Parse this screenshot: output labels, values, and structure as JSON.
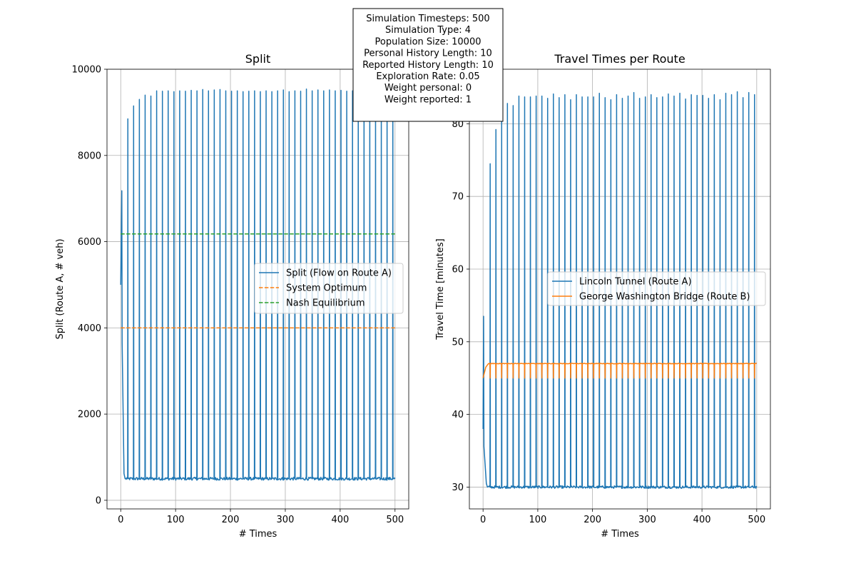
{
  "chart_data": [
    {
      "type": "line",
      "title": "Split",
      "xlabel": "# Times",
      "ylabel": "Split (Route A, # veh)",
      "xlim": [
        -25,
        525
      ],
      "ylim": [
        -200,
        10000
      ],
      "xticks": [
        "0",
        "100",
        "200",
        "300",
        "400",
        "500"
      ],
      "yticks": [
        "0",
        "2000",
        "4000",
        "6000",
        "8000",
        "10000"
      ],
      "grid": true,
      "legend_position": "center-right",
      "x_range": [
        0,
        500
      ],
      "series": [
        {
          "name": "Split (Flow on Route A)",
          "color": "#1f77b4",
          "style": "solid",
          "pattern": "oscillating",
          "start_value": 5000,
          "first_peak": 7180,
          "first_peak_x": 2,
          "low_value": 500,
          "high_value": 9500,
          "peak_period": 10.5,
          "peak_values": [
            8850,
            9150,
            9300,
            9400,
            9380,
            9500,
            9490,
            9500,
            9480,
            9500,
            9490,
            9510,
            9500,
            9530,
            9500,
            9520,
            9530,
            9500,
            9490,
            9500,
            9480,
            9490,
            9500,
            9480,
            9500,
            9480,
            9500,
            9520,
            9480,
            9500,
            9490,
            9540,
            9500,
            9520,
            9500,
            9520,
            9500,
            9510,
            9490,
            9500,
            9480,
            9500,
            9490,
            9480,
            9500,
            9480,
            9500
          ]
        },
        {
          "name": "System Optimum",
          "color": "#ff7f0e",
          "style": "dashed",
          "value": 4000
        },
        {
          "name": "Nash Equilibrium",
          "color": "#2ca02c",
          "style": "dashed",
          "value": 6180
        }
      ]
    },
    {
      "type": "line",
      "title": "Travel Times per Route",
      "xlabel": "# Times",
      "ylabel": "Travel Time [minutes]",
      "xlim": [
        -25,
        525
      ],
      "ylim": [
        27,
        87.5
      ],
      "xticks": [
        "0",
        "100",
        "200",
        "300",
        "400",
        "500"
      ],
      "yticks": [
        "30",
        "40",
        "50",
        "60",
        "70",
        "80"
      ],
      "grid": true,
      "legend_position": "center-right",
      "x_range": [
        0,
        500
      ],
      "series": [
        {
          "name": "Lincoln Tunnel (Route A)",
          "color": "#1f77b4",
          "style": "solid",
          "pattern": "oscillating",
          "start_value": 38,
          "first_peak": 53.5,
          "first_peak_x": 1,
          "low_value": 30,
          "high_value": 84,
          "peak_period": 10.5,
          "peak_values": [
            74.5,
            79.2,
            80.5,
            82.8,
            82.5,
            83.8,
            83.7,
            83.7,
            83.8,
            83.8,
            83.5,
            84.1,
            83.6,
            84.0,
            83.3,
            84.0,
            83.7,
            83.7,
            83.7,
            84.2,
            83.6,
            83.3,
            84.0,
            83.5,
            83.8,
            84.3,
            83.5,
            83.7,
            84.0,
            83.6,
            83.7,
            84.1,
            83.8,
            84.2,
            83.4,
            84.0,
            83.9,
            83.9,
            83.5,
            84.0,
            83.3,
            84.2,
            84.0,
            84.4,
            83.6,
            84.3,
            84.0,
            84.1
          ]
        },
        {
          "name": "George Washington Bridge (Route B)",
          "color": "#ff7f0e",
          "style": "solid",
          "pattern": "oscillating",
          "start_value": 45,
          "low_value": 45,
          "high_value": 47,
          "peak_period": 10.5
        }
      ]
    }
  ],
  "info_box": {
    "lines": [
      "Simulation Timesteps: 500",
      "Simulation Type: 4",
      "Population Size: 10000",
      "Personal History Length: 10",
      "Reported History Length: 10",
      "Exploration Rate: 0.05",
      "Weight personal: 0",
      "Weight reported: 1"
    ]
  }
}
